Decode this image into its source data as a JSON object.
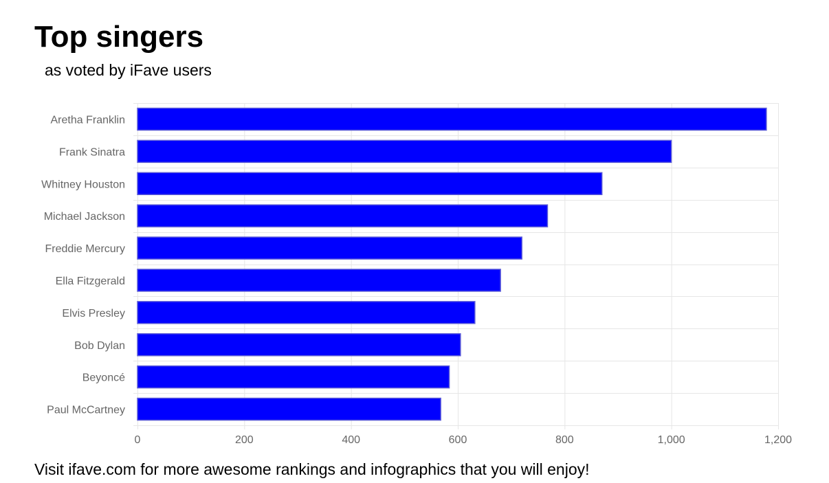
{
  "title": "Top singers",
  "subtitle": "as voted by iFave users",
  "footer": "Visit ifave.com for more awesome rankings and infographics that you will enjoy!",
  "chart_data": {
    "type": "bar",
    "orientation": "horizontal",
    "categories": [
      "Aretha Franklin",
      "Frank Sinatra",
      "Whitney Houston",
      "Michael Jackson",
      "Freddie Mercury",
      "Ella Fitzgerald",
      "Elvis Presley",
      "Bob Dylan",
      "Beyoncé",
      "Paul McCartney"
    ],
    "values": [
      1178,
      1000,
      870,
      768,
      720,
      680,
      632,
      605,
      584,
      568
    ],
    "xlim": [
      0,
      1200
    ],
    "x_ticks": [
      0,
      200,
      400,
      600,
      800,
      1000,
      1200
    ],
    "x_tick_labels": [
      "0",
      "200",
      "400",
      "600",
      "800",
      "1,000",
      "1,200"
    ],
    "grid": true,
    "bar_color": "#0000ff",
    "bar_border_color": "#5a5ad8",
    "grid_color": "#e6e6e6"
  }
}
